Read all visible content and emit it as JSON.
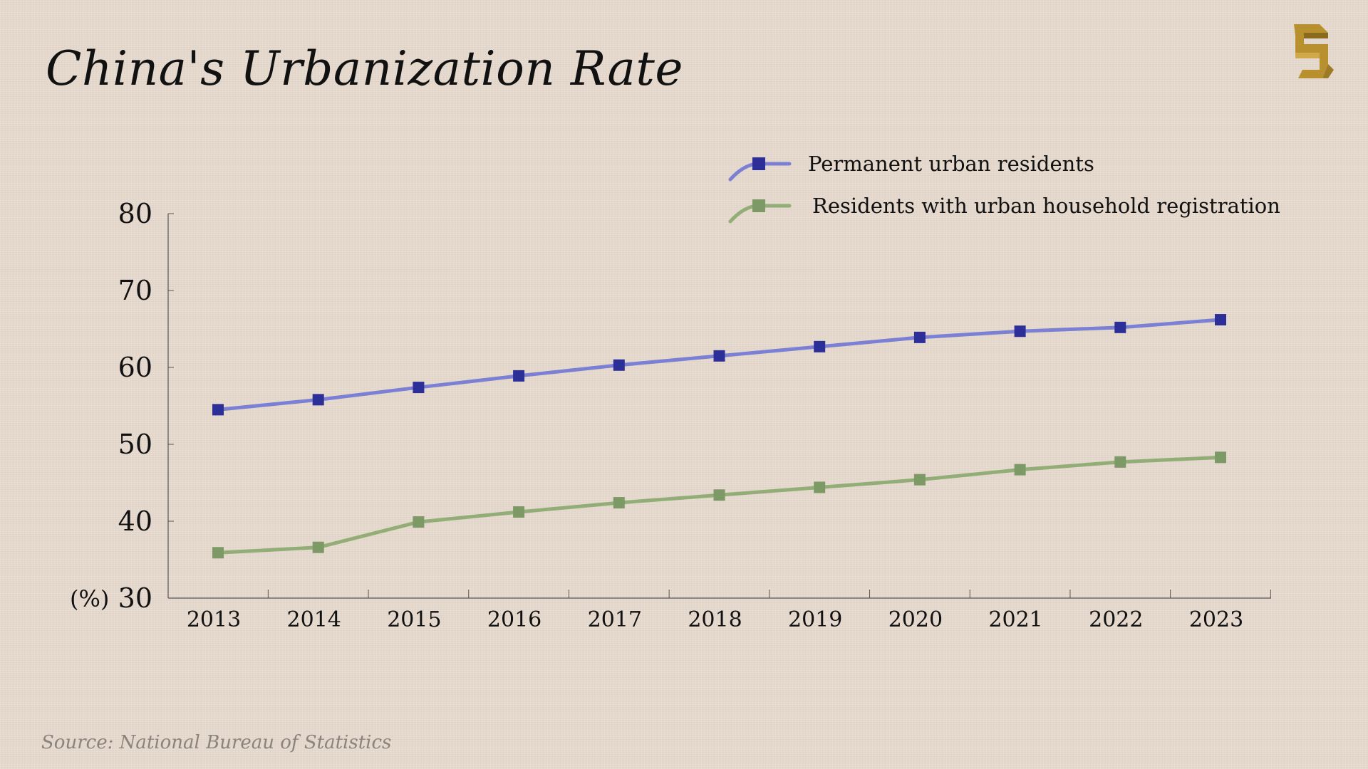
{
  "title": "China's Urbanization Rate",
  "source": "Source: National Bureau of Statistics",
  "colors": {
    "series1_line": "#7b80d4",
    "series1_marker": "#2d2f99",
    "series2_line": "#93ad76",
    "series2_marker": "#7d9965",
    "axis": "#555555"
  },
  "logo_icon": "gold-s-logo-icon",
  "chart_data": {
    "type": "line",
    "x": [
      "2013",
      "2014",
      "2015",
      "2016",
      "2017",
      "2018",
      "2019",
      "2020",
      "2021",
      "2022",
      "2023"
    ],
    "ylim": [
      30,
      80
    ],
    "yticks": [
      "80",
      "70",
      "60",
      "50",
      "40",
      "30"
    ],
    "ylabel": "(%)",
    "grid": false,
    "legend_position": "top-right",
    "series": [
      {
        "name": "Permanent urban residents",
        "values": [
          54.5,
          55.8,
          57.4,
          58.9,
          60.3,
          61.5,
          62.7,
          63.9,
          64.7,
          65.2,
          66.2
        ]
      },
      {
        "name": "Residents with urban household registration",
        "values": [
          35.9,
          36.6,
          39.9,
          41.2,
          42.4,
          43.4,
          44.4,
          45.4,
          46.7,
          47.7,
          48.3
        ]
      }
    ]
  }
}
